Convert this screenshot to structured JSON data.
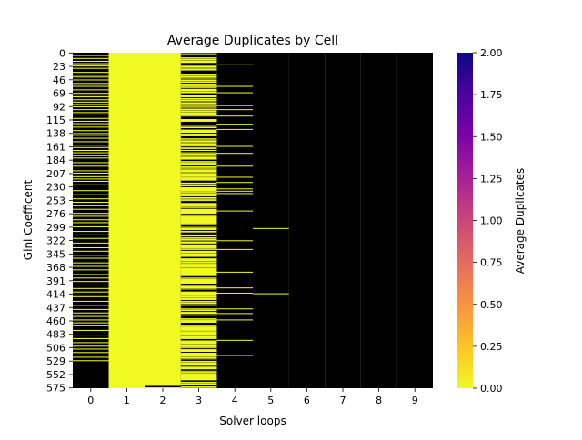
{
  "chart_data": {
    "type": "heatmap",
    "title": "Average Duplicates by Cell",
    "xlabel": "Solver loops",
    "ylabel": "Gini Coefficent",
    "x_ticks": [
      "0",
      "1",
      "2",
      "3",
      "4",
      "5",
      "6",
      "7",
      "8",
      "9"
    ],
    "y_ticks": [
      "0",
      "23",
      "46",
      "69",
      "92",
      "115",
      "138",
      "161",
      "184",
      "207",
      "230",
      "253",
      "276",
      "299",
      "322",
      "345",
      "368",
      "391",
      "414",
      "437",
      "460",
      "483",
      "506",
      "529",
      "552",
      "575"
    ],
    "n_rows": 576,
    "n_cols": 10,
    "colorbar": {
      "label": "Average Duplicates",
      "min": 0.0,
      "max": 2.0,
      "ticks": [
        "0.00",
        "0.25",
        "0.50",
        "0.75",
        "1.00",
        "1.25",
        "1.50",
        "1.75",
        "2.00"
      ],
      "colormap": "plasma_r",
      "color_at_zero": "#f0f921",
      "color_at_max": "#0d0887"
    },
    "value_colors": {
      "zero": "#f0f921",
      "no_duplicates_cells": "#000000"
    },
    "columns_mostly_zero": [
      1,
      2
    ],
    "columns_mostly_black": [
      0,
      3,
      4,
      5,
      6,
      7,
      8,
      9
    ],
    "yellow_rows_col0": [
      4,
      9,
      14,
      18,
      22,
      26,
      33,
      38,
      41,
      46,
      52,
      57,
      63,
      69,
      72,
      75,
      80,
      84,
      88,
      92,
      97,
      102,
      106,
      112,
      117,
      121,
      127,
      133,
      138,
      141,
      146,
      152,
      158,
      162,
      167,
      171,
      176,
      180,
      188,
      194,
      202,
      206,
      212,
      216,
      220,
      226,
      236,
      243,
      250,
      256,
      262,
      268,
      275,
      280,
      286,
      291,
      298,
      306,
      312,
      318,
      326,
      334,
      340,
      347,
      352,
      360,
      366,
      372,
      380,
      386,
      392,
      398,
      404,
      410,
      418,
      426,
      433,
      440,
      446,
      452,
      458,
      463,
      468,
      476,
      484,
      490,
      497,
      503,
      508,
      514,
      522,
      528
    ],
    "black_rows_col2": [
      572,
      573
    ],
    "yellow_rows_col4": [
      20,
      57,
      68,
      90,
      97,
      108,
      122,
      131,
      160,
      172,
      194,
      213,
      222,
      233,
      237,
      241,
      271,
      322,
      337,
      376,
      403,
      412,
      439,
      447,
      458,
      493,
      519
    ],
    "yellow_rows_col5": [
      301,
      413
    ],
    "col3_mostly_yellow_ranges": [
      [
        230,
        300
      ],
      [
        322,
        395
      ],
      [
        468,
        520
      ]
    ]
  }
}
